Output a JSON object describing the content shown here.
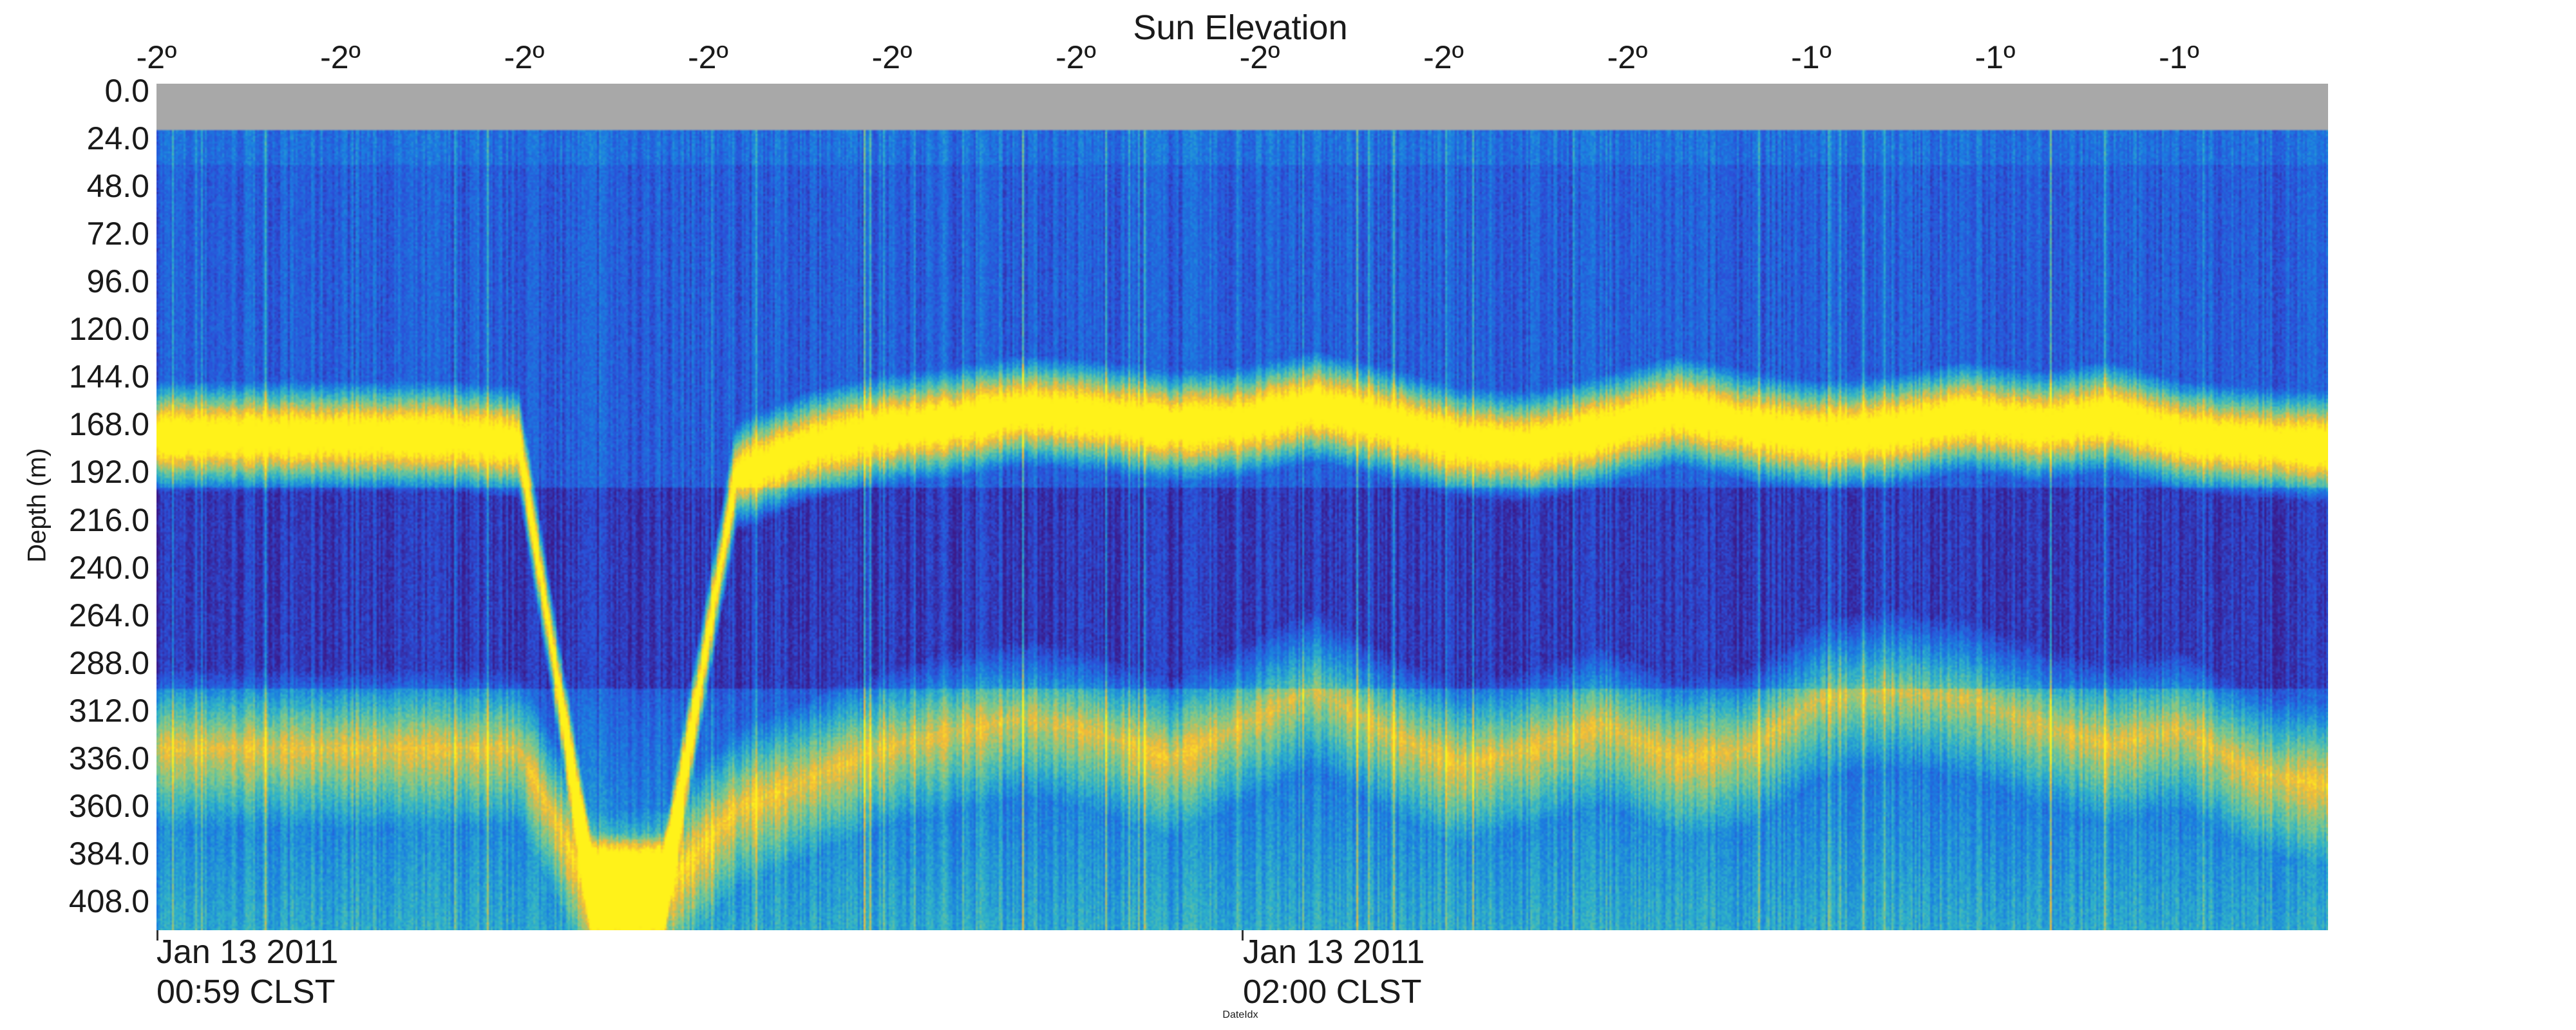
{
  "chart_data": {
    "type": "heatmap",
    "title": "Sun Elevation",
    "top_axis_labels": [
      "-2º",
      "-2º",
      "-2º",
      "-2º",
      "-2º",
      "-2º",
      "-2º",
      "-2º",
      "-2º",
      "-1º",
      "-1º",
      "-1º"
    ],
    "ylabel": "Depth (m)",
    "y_ticks": [
      "0.0",
      "24.0",
      "48.0",
      "72.0",
      "96.0",
      "120.0",
      "144.0",
      "168.0",
      "192.0",
      "216.0",
      "240.0",
      "264.0",
      "288.0",
      "312.0",
      "336.0",
      "360.0",
      "384.0",
      "408.0"
    ],
    "ylim": [
      0,
      420
    ],
    "x_date_labels": [
      {
        "line1": "Jan 13 2011",
        "line2": "00:59 CLST"
      },
      {
        "line1": "Jan 13 2011",
        "line2": "02:00 CLST"
      }
    ],
    "xlabel": "DateIdx",
    "grid": false,
    "colormap": [
      "#3b1a8a",
      "#2b4fd8",
      "#1b7fe0",
      "#2fb3c8",
      "#7fc98a",
      "#f2b93a",
      "#fff21a"
    ],
    "no_data_color": "#a8a8a8",
    "layers": [
      {
        "kind": "surface_band",
        "depth_top": 0,
        "depth_bottom": 24
      },
      {
        "kind": "scattering_layer",
        "depth_center": [
          175,
          175,
          175,
          175,
          175,
          178,
          400,
          400,
          195,
          180,
          172,
          168,
          162,
          165,
          170,
          168,
          160,
          168,
          178,
          180,
          172,
          162,
          170,
          175,
          172,
          165,
          170,
          165,
          175,
          178,
          180
        ],
        "thickness": 28
      },
      {
        "kind": "scattering_layer",
        "depth_center": [
          330,
          330,
          330,
          330,
          330,
          330,
          402,
          400,
          360,
          345,
          330,
          322,
          315,
          322,
          335,
          318,
          300,
          322,
          338,
          330,
          318,
          335,
          330,
          305,
          300,
          305,
          318,
          328,
          320,
          342,
          348
        ],
        "thickness": 40
      }
    ]
  }
}
